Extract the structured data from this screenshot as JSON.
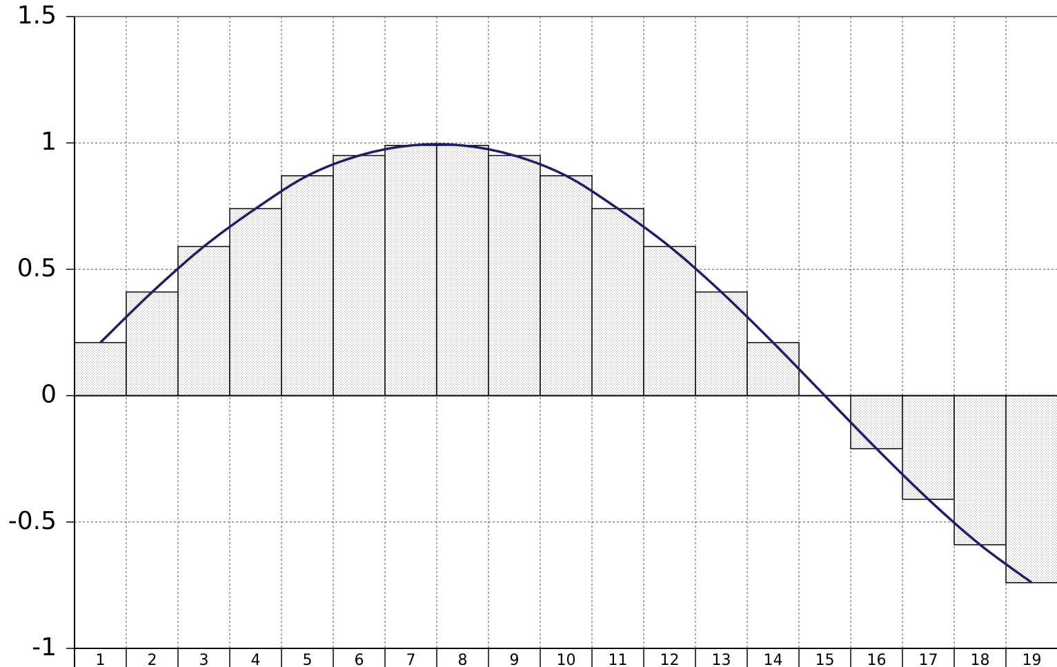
{
  "chart_data": {
    "type": "bar",
    "categories": [
      "1",
      "2",
      "3",
      "4",
      "5",
      "6",
      "7",
      "8",
      "9",
      "10",
      "11",
      "12",
      "13",
      "14",
      "15",
      "16",
      "17",
      "18",
      "19"
    ],
    "series": [
      {
        "type": "bar",
        "color": "#9a9a9a",
        "values": [
          0.21,
          0.41,
          0.59,
          0.74,
          0.87,
          0.95,
          0.99,
          0.99,
          0.95,
          0.87,
          0.74,
          0.59,
          0.41,
          0.21,
          0,
          -0.21,
          -0.41,
          -0.59,
          -0.74
        ]
      },
      {
        "type": "line",
        "color": "#1c1c78",
        "values": [
          0.21,
          0.41,
          0.59,
          0.74,
          0.87,
          0.95,
          0.99,
          0.99,
          0.95,
          0.87,
          0.74,
          0.59,
          0.41,
          0.21,
          0,
          -0.21,
          -0.41,
          -0.59,
          -0.74
        ]
      }
    ],
    "ylim": [
      -1,
      1.5
    ],
    "yticks": [
      -1,
      -0.5,
      0,
      0.5,
      1,
      1.5
    ],
    "grid": true
  }
}
